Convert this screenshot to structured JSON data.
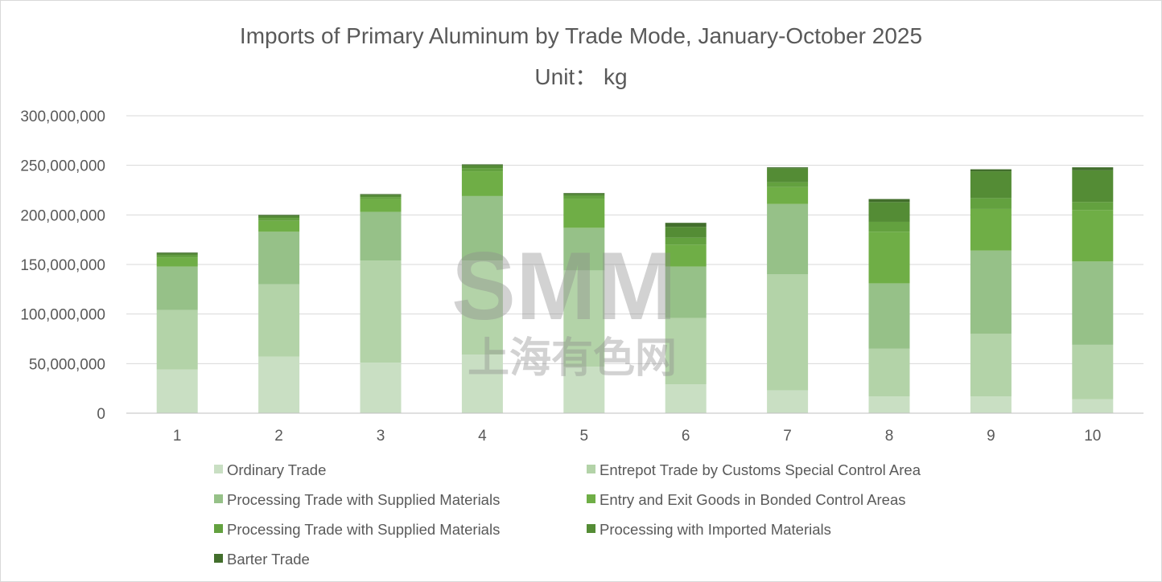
{
  "chart_data": {
    "type": "bar",
    "stacked": true,
    "title": "Imports of Primary Aluminum by Trade Mode, January-October 2025",
    "subtitle": "Unit： kg",
    "categories": [
      "1",
      "2",
      "3",
      "4",
      "5",
      "6",
      "7",
      "8",
      "9",
      "10"
    ],
    "ylim": [
      0,
      300000000
    ],
    "yticks": [
      0,
      50000000,
      100000000,
      150000000,
      200000000,
      250000000,
      300000000
    ],
    "ytick_labels": [
      "0",
      "50,000,000",
      "100,000,000",
      "150,000,000",
      "200,000,000",
      "250,000,000",
      "300,000,000"
    ],
    "grid": "horizontal",
    "legend_position": "bottom",
    "series": [
      {
        "name": "Ordinary Trade",
        "color": "#c9dfc3",
        "values": [
          44000000,
          57000000,
          51000000,
          59000000,
          47000000,
          29000000,
          23000000,
          17000000,
          17000000,
          14000000
        ]
      },
      {
        "name": "Entrepot Trade by Customs Special Control Area",
        "color": "#b3d3a8",
        "values": [
          60000000,
          73000000,
          103000000,
          95000000,
          97000000,
          67000000,
          117000000,
          48000000,
          63000000,
          55000000
        ]
      },
      {
        "name": "Processing Trade with Supplied Materials",
        "color": "#96c188",
        "values": [
          44000000,
          53000000,
          49000000,
          65000000,
          43000000,
          52000000,
          71000000,
          66000000,
          84000000,
          84000000
        ]
      },
      {
        "name": "Entry and Exit Goods in Bonded Control Areas",
        "color": "#6fae46",
        "values": [
          9000000,
          11000000,
          13000000,
          25000000,
          29000000,
          22000000,
          17000000,
          52000000,
          42000000,
          52000000
        ]
      },
      {
        "name": "Processing Trade with Supplied Materials",
        "color": "#63a13f",
        "values": [
          2000000,
          3000000,
          2000000,
          3000000,
          3000000,
          7000000,
          5000000,
          10000000,
          11000000,
          8000000
        ]
      },
      {
        "name": "Processing with Imported Materials",
        "color": "#548c35",
        "values": [
          2000000,
          2000000,
          2000000,
          3000000,
          2000000,
          11000000,
          14000000,
          20000000,
          27000000,
          32000000
        ]
      },
      {
        "name": "Barter Trade",
        "color": "#426e2c",
        "values": [
          1000000,
          1000000,
          1000000,
          1000000,
          1000000,
          4000000,
          1000000,
          3000000,
          2000000,
          3000000
        ]
      }
    ]
  },
  "watermark": {
    "logo": "SMM",
    "subtext": "上海有色网"
  }
}
